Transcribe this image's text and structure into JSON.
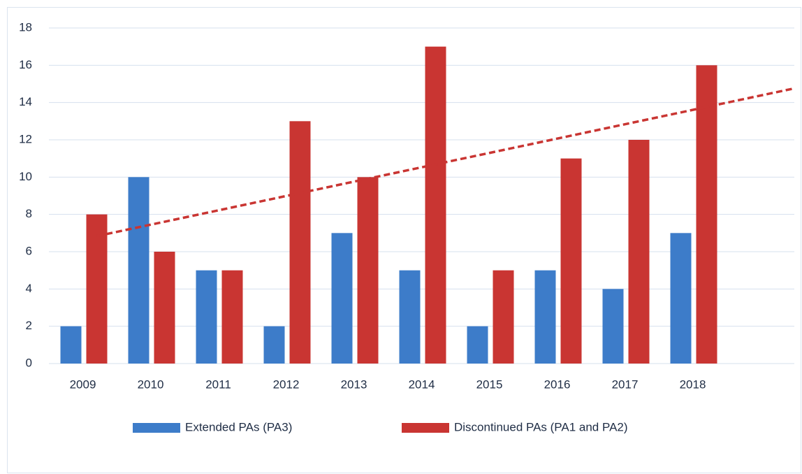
{
  "chart_data": {
    "type": "bar",
    "categories": [
      "2009",
      "2010",
      "2011",
      "2012",
      "2013",
      "2014",
      "2015",
      "2016",
      "2017",
      "2018"
    ],
    "series": [
      {
        "name": "Extended PAs (PA3)",
        "color": "#3d7cc9",
        "values": [
          2,
          10,
          5,
          2,
          7,
          5,
          2,
          5,
          4,
          7
        ]
      },
      {
        "name": "Discontinued PAs (PA1 and PA2)",
        "color": "#c93532",
        "values": [
          8,
          6,
          5,
          13,
          10,
          17,
          5,
          11,
          12,
          16
        ]
      }
    ],
    "ylim": [
      0,
      18
    ],
    "yticks": [
      0,
      2,
      4,
      6,
      8,
      10,
      12,
      14,
      16,
      18
    ],
    "grid": true,
    "trendline": true
  }
}
